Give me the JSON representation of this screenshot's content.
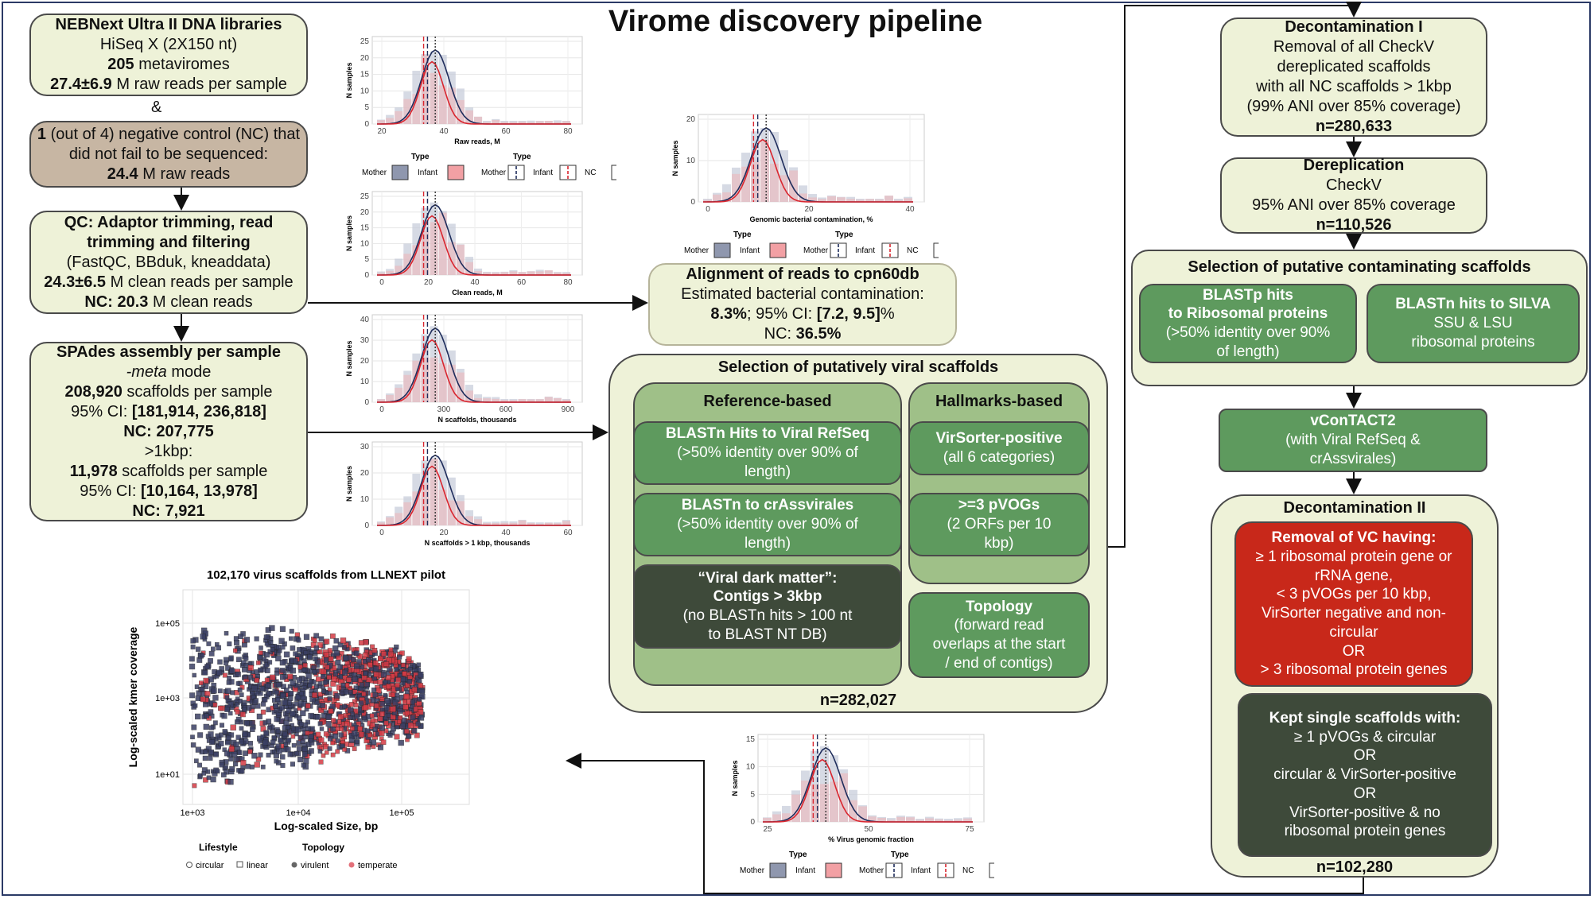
{
  "title": "Virome discovery pipeline",
  "amp": "&",
  "box_libraries": {
    "l1": "NEBNext Ultra II DNA libraries",
    "l2": "HiSeq X (2X150 nt)",
    "l3_b": "205",
    "l3": " metaviromes",
    "l4_b": "27.4±6.9",
    "l4": " M raw reads per sample"
  },
  "box_nc": {
    "l1_b": "1",
    "l1": " (out of 4) negative control (NC) that",
    "l2": "did not fail to be sequenced:",
    "l3_b": "24.4",
    "l3": " M raw reads"
  },
  "box_qc": {
    "l1": "QC: Adaptor trimming, read",
    "l2": "trimming and filtering",
    "l3": "(FastQC, BBduk, kneaddata)",
    "l4_b": "24.3±6.5",
    "l4": " M clean reads per sample",
    "l5_b": "NC: 20.3",
    "l5": " M clean reads"
  },
  "box_spades": {
    "l1": "SPAdes assembly per sample",
    "l2": "-meta",
    "l2b": " mode",
    "l3_b": "208,920",
    "l3": " scaffolds per sample",
    "l4": "95% CI: ",
    "l4_b": "[181,914, 236,818]",
    "l5": "NC: 207,775",
    "l6": ">1kbp:",
    "l7_b": "11,978",
    "l7": " scaffolds per sample",
    "l8": "95% CI: ",
    "l8_b": "[10,164, 13,978]",
    "l9": "NC: 7,921"
  },
  "box_align": {
    "l1": "Alignment of reads to cpn60db",
    "l2": "Estimated bacterial contamination:",
    "l3_b": "8.3%",
    "l3": "; 95% CI: ",
    "l3_c": "[7.2, 9.5]",
    "l3_d": "%",
    "l4": "NC: ",
    "l4_b": "36.5%"
  },
  "sel_viral": {
    "title": "Selection of putatively viral scaffolds",
    "ref": "Reference-based",
    "hall": "Hallmarks-based",
    "n": "n=282,027"
  },
  "b_refseq": {
    "l1": "BLASTn Hits to Viral RefSeq",
    "l2": "(>50% identity over 90% of",
    "l3": "length)"
  },
  "b_crass": {
    "l1": "BLASTn to crAssvirales",
    "l2": "(>50% identity over 90% of",
    "l3": "length)"
  },
  "b_dark": {
    "l1": "“Viral dark matter”:",
    "l2": "Contigs > 3kbp",
    "l3": "(no BLASTn hits > 100 nt",
    "l4": "to BLAST NT DB)"
  },
  "b_virsorter": {
    "l1": "VirSorter-positive",
    "l2": "(all 6 categories)"
  },
  "b_pvog": {
    "l1": ">=3 pVOGs",
    "l2": "(2 ORFs per 10",
    "l3": "kbp)"
  },
  "b_topo": {
    "l1": "Topology",
    "l2": "(forward read",
    "l3": "overlaps at the start",
    "l4": "/ end of contigs)"
  },
  "b_decon1": {
    "l1": "Decontamination I",
    "l2": "Removal of all CheckV",
    "l3": "dereplicated scaffolds",
    "l4": "with all NC scaffolds > 1kbp",
    "l5": "(99% ANI over 85% coverage)",
    "l6": "n=280,633"
  },
  "b_derep": {
    "l1": "Dereplication",
    "l2": "CheckV",
    "l3": "95% ANI over 85% coverage",
    "l4": "n=110,526"
  },
  "sel_contam": {
    "title": "Selection of putative contaminating scaffolds"
  },
  "b_blastp": {
    "l1": "BLASTp hits",
    "l2": "to Ribosomal proteins",
    "l3": "(>50% identity over 90%",
    "l4": "of length)"
  },
  "b_silva": {
    "l1": "BLASTn hits to SILVA",
    "l2": "SSU & LSU",
    "l3": "ribosomal proteins"
  },
  "b_vcontact": {
    "l1": "vConTACT2",
    "l2": "(with Viral RefSeq &",
    "l3": "crAssvirales)"
  },
  "decon2": {
    "title": "Decontamination II",
    "n": "n=102,280"
  },
  "b_removal": {
    "l1": "Removal of VC having:",
    "l2": "≥ 1 ribosomal protein gene or",
    "l3": "rRNA gene,",
    "l4": "< 3 pVOGs per 10 kbp,",
    "l5": "VirSorter negative and non-",
    "l6": "circular",
    "l7": "OR",
    "l8": "> 3 ribosomal protein genes"
  },
  "b_kept": {
    "l1": "Kept single scaffolds with:",
    "l2": "≥ 1 pVOGs & circular",
    "l3": "OR",
    "l4": "circular & VirSorter-positive",
    "l5": "OR",
    "l6": "VirSorter-positive & no",
    "l7": "ribosomal protein genes"
  },
  "legend": {
    "type": "Type",
    "mother": "Mother",
    "infant": "Infant",
    "nc": "NC"
  },
  "plots": {
    "raw": {
      "xlabel": "Raw reads, M",
      "ylabel": "N samples",
      "xticks": [
        "20",
        "40",
        "60",
        "80"
      ],
      "yticks": [
        "0",
        "5",
        "10",
        "15",
        "20",
        "25"
      ]
    },
    "clean": {
      "xlabel": "Clean reads, M",
      "ylabel": "N samples",
      "xticks": [
        "0",
        "20",
        "40",
        "60",
        "80"
      ],
      "yticks": [
        "0",
        "5",
        "10",
        "15",
        "20",
        "25"
      ]
    },
    "scaff": {
      "xlabel": "N scaffolds, thousands",
      "ylabel": "N samples",
      "xticks": [
        "0",
        "300",
        "600",
        "900"
      ],
      "yticks": [
        "0",
        "10",
        "20",
        "30",
        "40"
      ]
    },
    "scaff1k": {
      "xlabel": "N scaffolds > 1 kbp, thousands",
      "ylabel": "N samples",
      "xticks": [
        "0",
        "20",
        "40",
        "60"
      ],
      "yticks": [
        "0",
        "10",
        "20",
        "30"
      ]
    },
    "bact": {
      "xlabel": "Genomic bacterial contamination, %",
      "ylabel": "N samples",
      "xticks": [
        "0",
        "20",
        "40"
      ],
      "yticks": [
        "0",
        "10",
        "20"
      ]
    },
    "vir": {
      "xlabel": "% Virus genomic fraction",
      "ylabel": "N samples",
      "xticks": [
        "25",
        "50",
        "75"
      ],
      "yticks": [
        "0",
        "5",
        "10",
        "15"
      ]
    }
  },
  "scatter": {
    "title": "102,170 virus scaffolds from LLNEXT pilot",
    "xlabel": "Log-scaled Size, bp",
    "ylabel": "Log-scaled kmer coverage",
    "xticks": [
      "1e+03",
      "1e+04",
      "1e+05"
    ],
    "yticks": [
      "1e+01",
      "1e+03",
      "1e+05"
    ],
    "lifestyle": "Lifestyle",
    "circular": "circular",
    "linear": "linear",
    "topology": "Topology",
    "virulent": "virulent",
    "temperate": "temperate"
  },
  "colors": {
    "mother": "#1f2d5c",
    "infant": "#d9262f",
    "box_light": "#eef2d8",
    "green": "#5e9a5e",
    "dark": "#3e4a3a",
    "red": "#c8281a"
  }
}
